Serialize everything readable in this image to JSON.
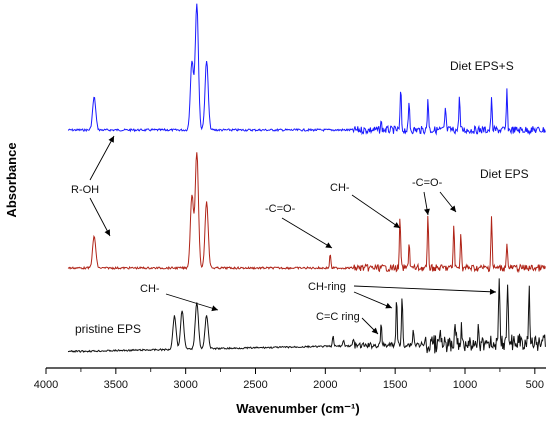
{
  "chart_data": {
    "type": "line",
    "xlabel": "Wavenumber (cm⁻¹)",
    "ylabel": "Absorbance",
    "xlim": [
      4000,
      420
    ],
    "x_reversed": true,
    "y_ticks_shown": false,
    "grid": false,
    "x_ticks": [
      4000,
      3500,
      3000,
      2500,
      2000,
      1500,
      1000,
      500
    ],
    "series": [
      {
        "name": "Diet EPS+S",
        "color": "#1a1aff",
        "peaks": [
          {
            "x": 3655,
            "h": 0.26
          },
          {
            "x": 2955,
            "h": 0.55
          },
          {
            "x": 2920,
            "h": 1.0
          },
          {
            "x": 2850,
            "h": 0.55
          },
          {
            "x": 1600,
            "h": 0.06
          },
          {
            "x": 1460,
            "h": 0.33
          },
          {
            "x": 1400,
            "h": 0.22
          },
          {
            "x": 1265,
            "h": 0.26
          },
          {
            "x": 1140,
            "h": 0.18
          },
          {
            "x": 1040,
            "h": 0.27
          },
          {
            "x": 810,
            "h": 0.24
          },
          {
            "x": 700,
            "h": 0.3
          }
        ]
      },
      {
        "name": "Diet EPS",
        "color": "#b02418",
        "peaks": [
          {
            "x": 3655,
            "h": 0.26
          },
          {
            "x": 2955,
            "h": 0.6
          },
          {
            "x": 2920,
            "h": 0.95
          },
          {
            "x": 2850,
            "h": 0.55
          },
          {
            "x": 1965,
            "h": 0.12
          },
          {
            "x": 1465,
            "h": 0.42
          },
          {
            "x": 1400,
            "h": 0.22
          },
          {
            "x": 1265,
            "h": 0.42
          },
          {
            "x": 1080,
            "h": 0.36
          },
          {
            "x": 1030,
            "h": 0.3
          },
          {
            "x": 810,
            "h": 0.44
          },
          {
            "x": 700,
            "h": 0.22
          }
        ]
      },
      {
        "name": "pristine EPS",
        "color": "#111111",
        "peaks": [
          {
            "x": 3080,
            "h": 0.3
          },
          {
            "x": 3025,
            "h": 0.35
          },
          {
            "x": 2920,
            "h": 0.42
          },
          {
            "x": 2850,
            "h": 0.3
          },
          {
            "x": 1945,
            "h": 0.1
          },
          {
            "x": 1870,
            "h": 0.06
          },
          {
            "x": 1800,
            "h": 0.06
          },
          {
            "x": 1600,
            "h": 0.18
          },
          {
            "x": 1490,
            "h": 0.44
          },
          {
            "x": 1450,
            "h": 0.44
          },
          {
            "x": 1370,
            "h": 0.14
          },
          {
            "x": 1180,
            "h": 0.14
          },
          {
            "x": 1070,
            "h": 0.18
          },
          {
            "x": 1025,
            "h": 0.16
          },
          {
            "x": 905,
            "h": 0.16
          },
          {
            "x": 755,
            "h": 0.62
          },
          {
            "x": 695,
            "h": 0.6
          },
          {
            "x": 540,
            "h": 0.46
          }
        ]
      }
    ],
    "annotations": [
      {
        "text": "R-OH"
      },
      {
        "text": "-C=O-"
      },
      {
        "text": "CH-"
      },
      {
        "text": "-C=O-"
      },
      {
        "text": "CH-"
      },
      {
        "text": "CH-ring"
      },
      {
        "text": "C=C ring"
      }
    ]
  }
}
